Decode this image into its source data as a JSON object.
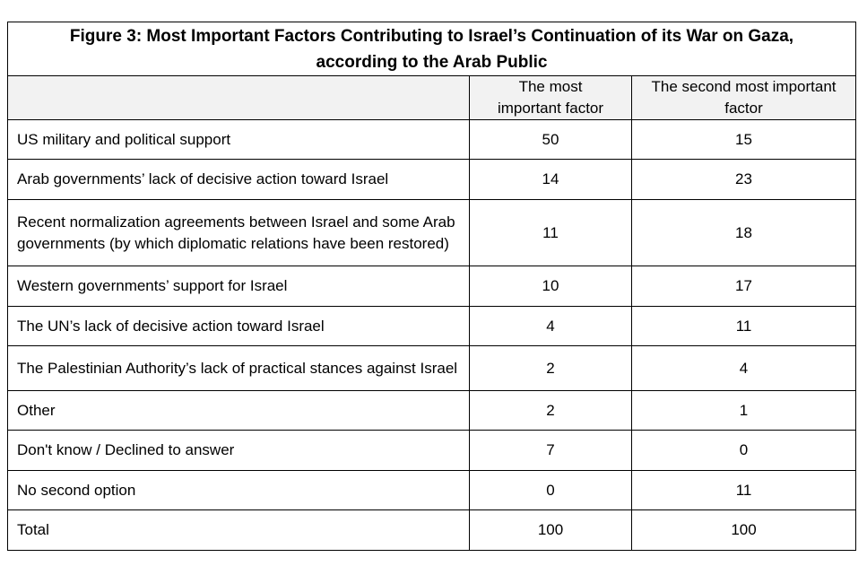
{
  "title_line1": "Figure 3: Most Important Factors Contributing to Israel’s Continuation of its War on Gaza,",
  "title_line2": "according to the Arab Public",
  "header": {
    "col1": "",
    "col2_line1": "The most",
    "col2_line2": "important factor",
    "col3_line1": "The second most important",
    "col3_line2": "factor"
  },
  "chart_data": {
    "type": "table",
    "title": "Figure 3: Most Important Factors Contributing to Israel’s Continuation of its War on Gaza, according to the Arab Public",
    "columns": [
      "",
      "The most important factor",
      "The second most important factor"
    ],
    "rows": [
      {
        "label": "US military and political support",
        "most": "50",
        "second": "15"
      },
      {
        "label": "Arab governments’ lack of decisive action toward Israel",
        "most": "14",
        "second": "23"
      },
      {
        "label": "Recent normalization agreements between Israel and some Arab governments (by which diplomatic relations have been restored)",
        "most": "11",
        "second": "18"
      },
      {
        "label": "Western governments’ support for Israel",
        "most": "10",
        "second": "17"
      },
      {
        "label": "The UN’s lack of decisive action toward Israel",
        "most": "4",
        "second": "11"
      },
      {
        "label": "The Palestinian Authority’s lack of practical stances against Israel",
        "most": "2",
        "second": "4"
      },
      {
        "label": "Other",
        "most": "2",
        "second": "1"
      },
      {
        "label": "Don't know / Declined to answer",
        "most": "7",
        "second": "0"
      },
      {
        "label": "No second option",
        "most": "0",
        "second": "11"
      },
      {
        "label": "Total",
        "most": "100",
        "second": "100"
      }
    ]
  }
}
